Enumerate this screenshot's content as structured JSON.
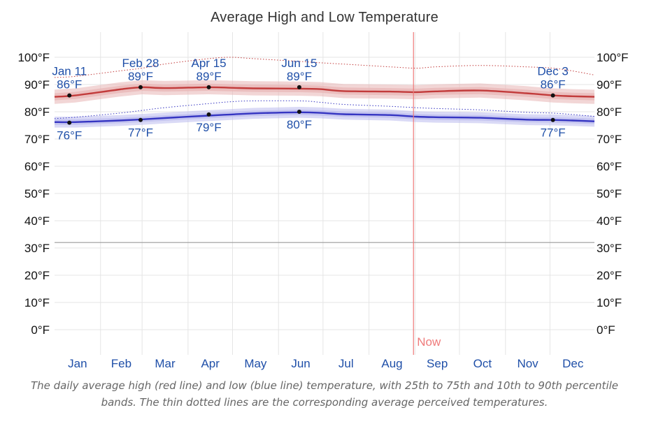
{
  "chart_data": {
    "type": "line",
    "title": "Average High and Low Temperature",
    "caption": "The daily average high (red line) and low (blue line) temperature, with 25th to 75th and 10th to 90th percentile bands. The thin dotted lines are the corresponding average perceived temperatures.",
    "ylim": [
      -10,
      105
    ],
    "yticks": [
      "0°F",
      "10°F",
      "20°F",
      "30°F",
      "40°F",
      "50°F",
      "60°F",
      "70°F",
      "80°F",
      "90°F",
      "100°F"
    ],
    "ytick_values": [
      0,
      10,
      20,
      30,
      40,
      50,
      60,
      70,
      80,
      90,
      100
    ],
    "freezing_line": 32,
    "months": [
      "Jan",
      "Feb",
      "Mar",
      "Apr",
      "May",
      "Jun",
      "Jul",
      "Aug",
      "Sep",
      "Oct",
      "Nov",
      "Dec"
    ],
    "now": {
      "label": "Now",
      "day": 243
    },
    "colors": {
      "high": "#c23b3b",
      "high_band": "#e8b5b5",
      "low": "#3535c2",
      "low_band": "#bcbcee",
      "now": "#ef7b7b",
      "freezing": "#9a9a9a",
      "grid": "#e5e5e5"
    },
    "series": [
      {
        "name": "Average high",
        "x": [
          1,
          15,
          45,
          60,
          75,
          105,
          120,
          135,
          166,
          180,
          196,
          227,
          245,
          258,
          288,
          319,
          337,
          350,
          365
        ],
        "values": [
          85.5,
          86,
          88.2,
          89,
          88.7,
          89,
          88.8,
          88.6,
          88.5,
          88.3,
          87.6,
          87.4,
          87.2,
          87.5,
          87.8,
          86.8,
          86,
          85.7,
          85.5
        ]
      },
      {
        "name": "Average low",
        "x": [
          1,
          15,
          45,
          60,
          75,
          105,
          120,
          135,
          166,
          180,
          196,
          227,
          245,
          258,
          288,
          319,
          337,
          350,
          365
        ],
        "values": [
          76.2,
          76.2,
          76.8,
          77.2,
          77.7,
          78.6,
          79,
          79.4,
          79.8,
          79.6,
          79.1,
          78.8,
          78.2,
          78,
          77.8,
          77.1,
          77,
          76.8,
          76.5
        ]
      },
      {
        "name": "Perceived high",
        "x": [
          1,
          15,
          45,
          60,
          75,
          105,
          120,
          135,
          166,
          180,
          196,
          227,
          245,
          258,
          288,
          319,
          337,
          350,
          365
        ],
        "values": [
          92.6,
          93,
          95,
          96,
          97.5,
          99.5,
          100,
          99.5,
          98.5,
          98,
          97.5,
          96.5,
          96,
          96.5,
          97,
          96.5,
          96,
          95,
          93.5
        ]
      },
      {
        "name": "Perceived low",
        "x": [
          1,
          15,
          45,
          60,
          75,
          105,
          120,
          135,
          166,
          180,
          196,
          227,
          245,
          258,
          288,
          319,
          337,
          350,
          365
        ],
        "values": [
          77.5,
          78,
          79.5,
          80.5,
          81.5,
          83,
          83.7,
          84,
          84,
          83.5,
          82.7,
          82,
          81.5,
          81.2,
          80.7,
          79.8,
          79.5,
          79,
          78.3
        ]
      }
    ],
    "annotations": {
      "high": [
        {
          "date": "Jan 11",
          "day": 11,
          "value": 86,
          "label": "86°F"
        },
        {
          "date": "Feb 28",
          "day": 59,
          "value": 89,
          "label": "89°F"
        },
        {
          "date": "Apr 15",
          "day": 105,
          "value": 89,
          "label": "89°F"
        },
        {
          "date": "Jun 15",
          "day": 166,
          "value": 89,
          "label": "89°F"
        },
        {
          "date": "Dec 3",
          "day": 337,
          "value": 86,
          "label": "86°F"
        }
      ],
      "low": [
        {
          "day": 11,
          "value": 76,
          "label": "76°F"
        },
        {
          "day": 59,
          "value": 77,
          "label": "77°F"
        },
        {
          "day": 105,
          "value": 79,
          "label": "79°F"
        },
        {
          "day": 166,
          "value": 80,
          "label": "80°F"
        },
        {
          "day": 337,
          "value": 77,
          "label": "77°F"
        }
      ]
    }
  }
}
